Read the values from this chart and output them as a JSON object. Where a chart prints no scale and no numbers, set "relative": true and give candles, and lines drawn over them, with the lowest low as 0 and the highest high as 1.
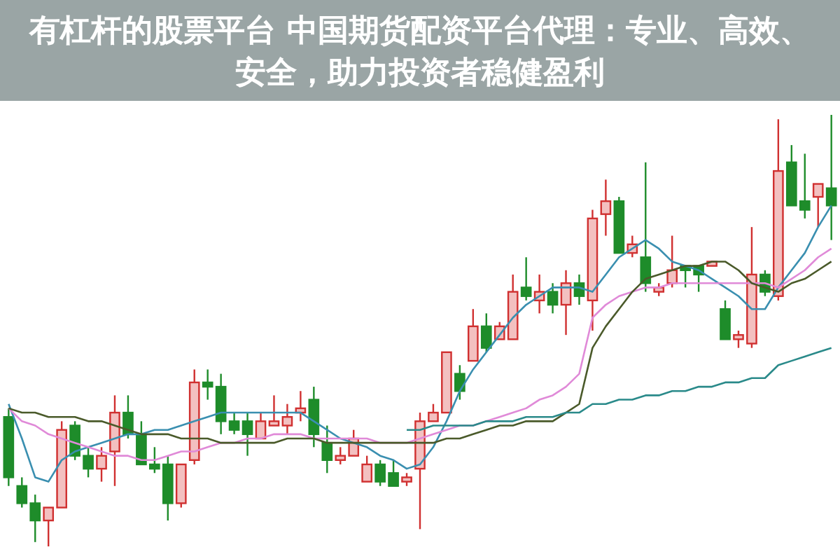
{
  "chart_data": {
    "type": "candlestick",
    "title": "有杠杆的股票平台 中国期货配资平台代理：专业、高效、安全，助力投资者稳健盈利",
    "relative": true,
    "categories": [
      null,
      null,
      null,
      null,
      null,
      null,
      null,
      null,
      null,
      null,
      null,
      null,
      null,
      null,
      null,
      null,
      null,
      null,
      null,
      null,
      null,
      null,
      null,
      null,
      null,
      null,
      null,
      null,
      null,
      null,
      null,
      null,
      null,
      null,
      null,
      null,
      null,
      null,
      null,
      null,
      null,
      null,
      null,
      null,
      null,
      null,
      null,
      null,
      null,
      null,
      null,
      null,
      null,
      null,
      null,
      null,
      null,
      null,
      null,
      null,
      null,
      null,
      null
    ],
    "ohlc": [
      [
        0.3,
        0.32,
        0.14,
        0.16
      ],
      [
        0.14,
        0.16,
        0.09,
        0.1
      ],
      [
        0.1,
        0.12,
        0.01,
        0.06
      ],
      [
        0.06,
        0.09,
        0,
        0.09
      ],
      [
        0.09,
        0.29,
        0.09,
        0.27
      ],
      [
        0.28,
        0.29,
        0.2,
        0.21
      ],
      [
        0.21,
        0.23,
        0.16,
        0.18
      ],
      [
        0.18,
        0.23,
        0.15,
        0.21
      ],
      [
        0.22,
        0.35,
        0.14,
        0.31
      ],
      [
        0.31,
        0.35,
        0.25,
        0.26
      ],
      [
        0.26,
        0.29,
        0.19,
        0.19
      ],
      [
        0.19,
        0.23,
        0.17,
        0.18
      ],
      [
        0.19,
        0.21,
        0.06,
        0.1
      ],
      [
        0.1,
        0.19,
        0.09,
        0.19
      ],
      [
        0.2,
        0.41,
        0.19,
        0.38
      ],
      [
        0.38,
        0.41,
        0.34,
        0.37
      ],
      [
        0.37,
        0.4,
        0.26,
        0.29
      ],
      [
        0.29,
        0.31,
        0.26,
        0.27
      ],
      [
        0.29,
        0.31,
        0.21,
        0.26
      ],
      [
        0.25,
        0.31,
        0.25,
        0.29
      ],
      [
        0.28,
        0.35,
        0.28,
        0.29
      ],
      [
        0.28,
        0.33,
        0.26,
        0.3
      ],
      [
        0.31,
        0.36,
        0.29,
        0.32
      ],
      [
        0.34,
        0.37,
        0.23,
        0.26
      ],
      [
        0.24,
        0.28,
        0.17,
        0.2
      ],
      [
        0.2,
        0.23,
        0.19,
        0.21
      ],
      [
        0.21,
        0.27,
        0.21,
        0.25
      ],
      [
        0.15,
        0.21,
        0.15,
        0.19
      ],
      [
        0.19,
        0.2,
        0.14,
        0.15
      ],
      [
        0.17,
        0.2,
        0.14,
        0.14
      ],
      [
        0.15,
        0.17,
        0.14,
        0.16
      ],
      [
        0.18,
        0.31,
        0.04,
        0.29
      ],
      [
        0.29,
        0.33,
        0.29,
        0.31
      ],
      [
        0.31,
        0.45,
        0.31,
        0.45
      ],
      [
        0.4,
        0.42,
        0.34,
        0.36
      ],
      [
        0.43,
        0.55,
        0.43,
        0.51
      ],
      [
        0.51,
        0.54,
        0.45,
        0.46
      ],
      [
        0.48,
        0.52,
        0.48,
        0.51
      ],
      [
        0.48,
        0.63,
        0.48,
        0.59
      ],
      [
        0.6,
        0.67,
        0.57,
        0.58
      ],
      [
        0.57,
        0.63,
        0.54,
        0.59
      ],
      [
        0.59,
        0.61,
        0.54,
        0.56
      ],
      [
        0.56,
        0.64,
        0.49,
        0.61
      ],
      [
        0.61,
        0.63,
        0.56,
        0.58
      ],
      [
        0.57,
        0.78,
        0.5,
        0.76
      ],
      [
        0.77,
        0.85,
        0.72,
        0.8
      ],
      [
        0.8,
        0.81,
        0.68,
        0.68
      ],
      [
        0.68,
        0.72,
        0.67,
        0.7
      ],
      [
        0.67,
        0.89,
        0.59,
        0.61
      ],
      [
        0.59,
        0.61,
        0.58,
        0.6
      ],
      [
        0.61,
        0.72,
        0.6,
        0.64
      ],
      [
        0.65,
        0.65,
        0.6,
        0.64
      ],
      [
        0.65,
        0.65,
        0.59,
        0.63
      ],
      [
        0.65,
        0.66,
        0.65,
        0.66
      ],
      [
        0.55,
        0.57,
        0.48,
        0.48
      ],
      [
        0.48,
        0.5,
        0.46,
        0.49
      ],
      [
        0.47,
        0.74,
        0.46,
        0.63
      ],
      [
        0.63,
        0.64,
        0.58,
        0.59
      ],
      [
        0.58,
        0.99,
        0.57,
        0.87
      ],
      [
        0.89,
        0.93,
        0.79,
        0.79
      ],
      [
        0.8,
        0.91,
        0.76,
        0.78
      ],
      [
        0.81,
        0.84,
        0.74,
        0.84
      ],
      [
        0.83,
        1,
        0.71,
        0.79
      ]
    ],
    "series": [
      {
        "type": "line",
        "color": "#3a8fb0",
        "values": [
          0.33,
          0.25,
          0.16,
          0.15,
          0.2,
          0.22,
          0.23,
          0.24,
          0.25,
          0.26,
          0.26,
          0.27,
          0.27,
          0.28,
          0.29,
          0.3,
          0.31,
          0.31,
          0.31,
          0.31,
          0.31,
          0.31,
          0.31,
          0.29,
          0.27,
          0.25,
          0.24,
          0.23,
          0.21,
          0.2,
          0.18,
          0.19,
          0.23,
          0.29,
          0.36,
          0.41,
          0.45,
          0.49,
          0.53,
          0.56,
          0.58,
          0.6,
          0.6,
          0.6,
          0.59,
          0.63,
          0.67,
          0.69,
          0.71,
          0.69,
          0.66,
          0.65,
          0.64,
          0.62,
          0.6,
          0.58,
          0.55,
          0.55,
          0.6,
          0.64,
          0.68,
          0.74,
          0.79
        ]
      },
      {
        "type": "line",
        "color": "#e08ad8",
        "values": [
          0.32,
          0.29,
          0.28,
          0.26,
          0.25,
          0.24,
          0.23,
          0.22,
          0.21,
          0.21,
          0.2,
          0.2,
          0.21,
          0.22,
          0.22,
          0.23,
          0.24,
          0.24,
          0.25,
          0.25,
          0.26,
          0.26,
          0.26,
          0.25,
          0.25,
          0.25,
          0.25,
          0.25,
          0.24,
          0.24,
          0.24,
          0.25,
          0.26,
          0.27,
          0.28,
          0.28,
          0.29,
          0.3,
          0.31,
          0.32,
          0.34,
          0.35,
          0.37,
          0.4,
          0.53,
          0.56,
          0.58,
          0.59,
          0.6,
          0.6,
          0.61,
          0.61,
          0.61,
          0.61,
          0.61,
          0.61,
          0.61,
          0.61,
          0.6,
          0.62,
          0.64,
          0.67,
          0.69
        ]
      },
      {
        "type": "line",
        "color": "#4a5a2a",
        "values": [
          0.32,
          0.31,
          0.31,
          0.3,
          0.3,
          0.3,
          0.29,
          0.29,
          0.28,
          0.27,
          0.26,
          0.26,
          0.26,
          0.25,
          0.25,
          0.25,
          0.24,
          0.24,
          0.24,
          0.24,
          0.24,
          0.25,
          0.25,
          0.25,
          0.24,
          0.24,
          0.24,
          0.24,
          0.24,
          0.24,
          0.24,
          0.24,
          0.24,
          0.25,
          0.25,
          0.26,
          0.27,
          0.28,
          0.28,
          0.29,
          0.29,
          0.29,
          0.31,
          0.33,
          0.46,
          0.51,
          0.55,
          0.59,
          0.62,
          0.63,
          0.64,
          0.65,
          0.65,
          0.66,
          0.66,
          0.64,
          0.61,
          0.6,
          0.59,
          0.61,
          0.62,
          0.64,
          0.66
        ]
      },
      {
        "type": "line",
        "color": "#2a8a8a",
        "values": [
          null,
          null,
          null,
          null,
          null,
          null,
          null,
          null,
          null,
          null,
          null,
          null,
          null,
          null,
          null,
          null,
          null,
          null,
          null,
          null,
          null,
          null,
          null,
          null,
          null,
          null,
          null,
          null,
          null,
          null,
          0.27,
          0.27,
          0.28,
          0.28,
          0.28,
          0.28,
          0.29,
          0.29,
          0.29,
          0.3,
          0.3,
          0.3,
          0.31,
          0.31,
          0.33,
          0.33,
          0.34,
          0.34,
          0.35,
          0.35,
          0.36,
          0.36,
          0.37,
          0.37,
          0.38,
          0.38,
          0.39,
          0.39,
          0.42,
          0.43,
          0.44,
          0.45,
          0.46
        ]
      }
    ]
  }
}
